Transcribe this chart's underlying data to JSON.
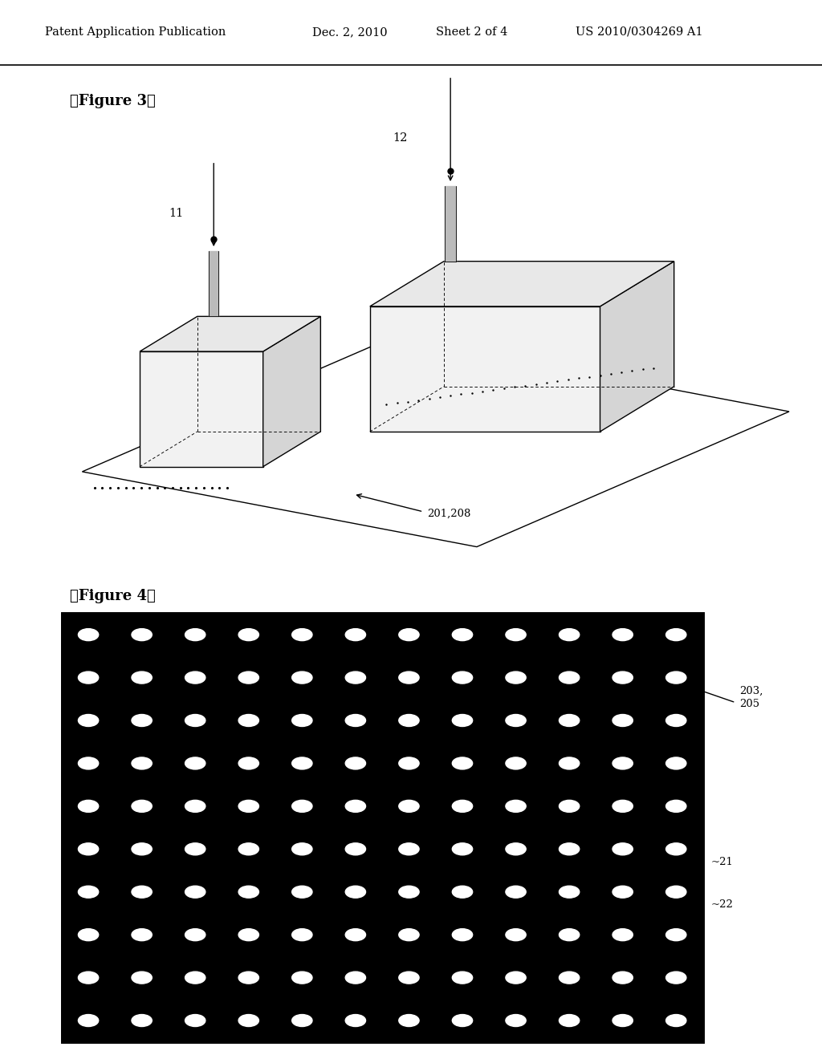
{
  "background_color": "#ffffff",
  "header_text": "Patent Application Publication",
  "header_date": "Dec. 2, 2010",
  "header_sheet": "Sheet 2 of 4",
  "header_patent": "US 2010/0304269 A1",
  "fig3_label": "【Figure 3】",
  "fig4_label": "【Figure 4】",
  "label_11": "11",
  "label_12": "12",
  "label_201_208": "201,208",
  "label_203_205": "203,\n205",
  "label_21": "~21",
  "label_22": "~22"
}
